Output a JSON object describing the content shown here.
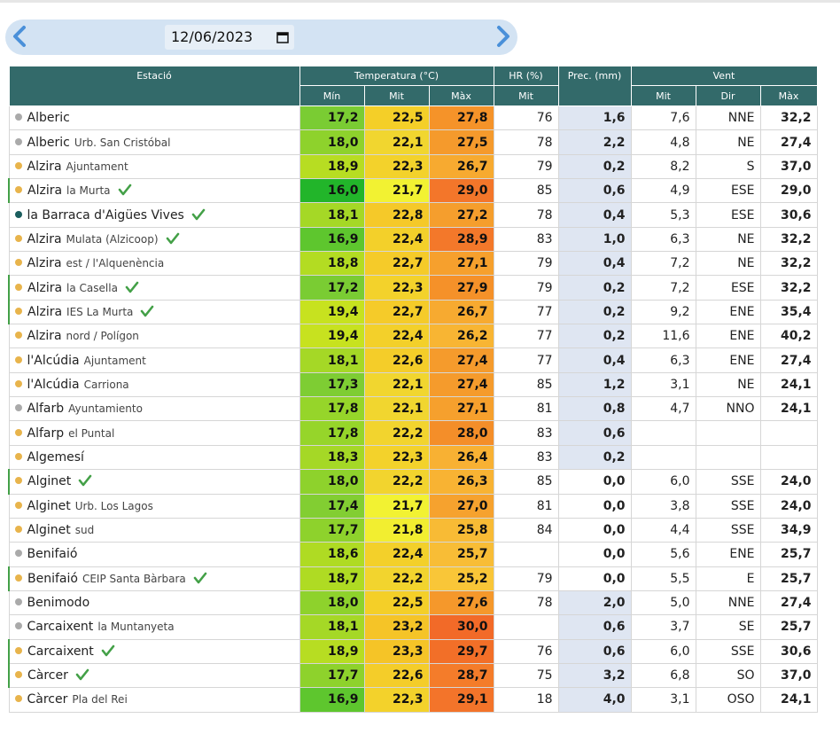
{
  "date_value": "12/06/2023",
  "header": {
    "estacio": "Estació",
    "temperatura": "Temperatura (°C)",
    "hr": "HR (%)",
    "prec": "Prec. (mm)",
    "vent": "Vent",
    "min": "Mín",
    "mit": "Mit",
    "max": "Màx",
    "hr_mit": "Mit",
    "vent_mit": "Mit",
    "vent_dir": "Dir",
    "vent_max": "Màx"
  },
  "colors": {
    "header_bg": "#336a6a",
    "date_bar_bg": "#d3e3f3",
    "arrow": "#4a90d9",
    "check": "#43a047",
    "prec_shaded": "#dfe6f2",
    "dot_grey": "#aaaaaa",
    "dot_yellow": "#e8b44c",
    "dot_teal": "#1b5e5e"
  },
  "rows": [
    {
      "city": "Alberic",
      "sub": "",
      "dot": "grey",
      "check": false,
      "bar": false,
      "min": "17,2",
      "mit": "22,5",
      "max": "27,8",
      "min_c": "#7acc33",
      "mit_c": "#f4cf28",
      "max_c": "#f59329",
      "hr": "76",
      "prec": "1,6",
      "shade": true,
      "vmit": "7,6",
      "vdir": "NNE",
      "vmax": "32,2"
    },
    {
      "city": "Alberic",
      "sub": "Urb. San Cristóbal",
      "dot": "grey",
      "check": false,
      "bar": false,
      "min": "18,0",
      "mit": "22,1",
      "max": "27,5",
      "min_c": "#8ed22c",
      "mit_c": "#f1d62f",
      "max_c": "#f59a2c",
      "hr": "78",
      "prec": "2,2",
      "shade": true,
      "vmit": "4,8",
      "vdir": "NE",
      "vmax": "27,4"
    },
    {
      "city": "Alzira",
      "sub": "Ajuntament",
      "dot": "yellow",
      "check": false,
      "bar": false,
      "min": "18,9",
      "mit": "22,3",
      "max": "26,7",
      "min_c": "#b7dd22",
      "mit_c": "#f3d22b",
      "max_c": "#f7aa30",
      "hr": "79",
      "prec": "0,2",
      "shade": true,
      "vmit": "8,2",
      "vdir": "S",
      "vmax": "37,0"
    },
    {
      "city": "Alzira",
      "sub": "la Murta",
      "dot": "yellow",
      "check": true,
      "bar": true,
      "min": "16,0",
      "mit": "21,7",
      "max": "29,0",
      "min_c": "#22b52a",
      "mit_c": "#f2f232",
      "max_c": "#f3762a",
      "hr": "85",
      "prec": "0,6",
      "shade": true,
      "vmit": "4,9",
      "vdir": "ESE",
      "vmax": "29,0"
    },
    {
      "city": "la Barraca d'Aigües Vives",
      "sub": "",
      "dot": "teal",
      "check": true,
      "bar": false,
      "min": "18,1",
      "mit": "22,8",
      "max": "27,2",
      "min_c": "#a5d826",
      "mit_c": "#f5c929",
      "max_c": "#f59e2d",
      "hr": "78",
      "prec": "0,4",
      "shade": true,
      "vmit": "5,3",
      "vdir": "ESE",
      "vmax": "30,6"
    },
    {
      "city": "Alzira",
      "sub": "Mulata (Alzicoop)",
      "dot": "yellow",
      "check": true,
      "bar": false,
      "min": "16,9",
      "mit": "22,4",
      "max": "28,9",
      "min_c": "#5ec62e",
      "mit_c": "#f3d02a",
      "max_c": "#f3782a",
      "hr": "83",
      "prec": "1,0",
      "shade": true,
      "vmit": "6,3",
      "vdir": "NE",
      "vmax": "32,2"
    },
    {
      "city": "Alzira",
      "sub": "est / l'Alquenència",
      "dot": "yellow",
      "check": false,
      "bar": false,
      "min": "18,8",
      "mit": "22,7",
      "max": "27,1",
      "min_c": "#b3dc22",
      "mit_c": "#f5cb29",
      "max_c": "#f6a02d",
      "hr": "79",
      "prec": "0,4",
      "shade": true,
      "vmit": "7,2",
      "vdir": "NE",
      "vmax": "32,2"
    },
    {
      "city": "Alzira",
      "sub": "la Casella",
      "dot": "yellow",
      "check": true,
      "bar": true,
      "min": "17,2",
      "mit": "22,3",
      "max": "27,9",
      "min_c": "#7acc33",
      "mit_c": "#f3d22b",
      "max_c": "#f59129",
      "hr": "79",
      "prec": "0,2",
      "shade": true,
      "vmit": "7,2",
      "vdir": "ESE",
      "vmax": "32,2"
    },
    {
      "city": "Alzira",
      "sub": "IES La Murta",
      "dot": "yellow",
      "check": true,
      "bar": true,
      "min": "19,4",
      "mit": "22,7",
      "max": "26,7",
      "min_c": "#c7e21f",
      "mit_c": "#f5cb29",
      "max_c": "#f7aa30",
      "hr": "77",
      "prec": "0,2",
      "shade": true,
      "vmit": "9,2",
      "vdir": "ENE",
      "vmax": "35,4"
    },
    {
      "city": "Alzira",
      "sub": "nord / Polígon",
      "dot": "yellow",
      "check": false,
      "bar": false,
      "min": "19,4",
      "mit": "22,4",
      "max": "26,2",
      "min_c": "#c7e21f",
      "mit_c": "#f3d02a",
      "max_c": "#f8b533",
      "hr": "77",
      "prec": "0,2",
      "shade": true,
      "vmit": "11,6",
      "vdir": "ENE",
      "vmax": "40,2"
    },
    {
      "city": "l'Alcúdia",
      "sub": "Ajuntament",
      "dot": "yellow",
      "check": false,
      "bar": false,
      "min": "18,1",
      "mit": "22,6",
      "max": "27,4",
      "min_c": "#a5d826",
      "mit_c": "#f4cd29",
      "max_c": "#f59b2c",
      "hr": "77",
      "prec": "0,4",
      "shade": true,
      "vmit": "6,3",
      "vdir": "ENE",
      "vmax": "27,4"
    },
    {
      "city": "l'Alcúdia",
      "sub": "Carriona",
      "dot": "yellow",
      "check": false,
      "bar": false,
      "min": "17,3",
      "mit": "22,1",
      "max": "27,4",
      "min_c": "#7ecd33",
      "mit_c": "#f1d62f",
      "max_c": "#f59b2c",
      "hr": "85",
      "prec": "1,2",
      "shade": true,
      "vmit": "3,1",
      "vdir": "NE",
      "vmax": "24,1"
    },
    {
      "city": "Alfarb",
      "sub": "Ayuntamiento",
      "dot": "grey",
      "check": false,
      "bar": false,
      "min": "17,8",
      "mit": "22,1",
      "max": "27,1",
      "min_c": "#96d52a",
      "mit_c": "#f1d62f",
      "max_c": "#f6a02d",
      "hr": "81",
      "prec": "0,8",
      "shade": true,
      "vmit": "4,7",
      "vdir": "NNO",
      "vmax": "24,1"
    },
    {
      "city": "Alfarp",
      "sub": "el Puntal",
      "dot": "yellow",
      "check": false,
      "bar": false,
      "min": "17,8",
      "mit": "22,2",
      "max": "28,0",
      "min_c": "#96d52a",
      "mit_c": "#f2d42e",
      "max_c": "#f48e29",
      "hr": "83",
      "prec": "0,6",
      "shade": true,
      "vmit": "",
      "vdir": "",
      "vmax": ""
    },
    {
      "city": "Algemesí",
      "sub": "",
      "dot": "yellow",
      "check": false,
      "bar": false,
      "min": "18,3",
      "mit": "22,3",
      "max": "26,4",
      "min_c": "#a5d826",
      "mit_c": "#f3d22b",
      "max_c": "#f8b133",
      "hr": "83",
      "prec": "0,2",
      "shade": true,
      "vmit": "",
      "vdir": "",
      "vmax": ""
    },
    {
      "city": "Alginet",
      "sub": "",
      "dot": "yellow",
      "check": true,
      "bar": true,
      "min": "18,0",
      "mit": "22,2",
      "max": "26,3",
      "min_c": "#8ed22c",
      "mit_c": "#f2d42e",
      "max_c": "#f8b333",
      "hr": "85",
      "prec": "0,0",
      "shade": false,
      "vmit": "6,0",
      "vdir": "SSE",
      "vmax": "24,0"
    },
    {
      "city": "Alginet",
      "sub": "Urb. Los Lagos",
      "dot": "yellow",
      "check": false,
      "bar": false,
      "min": "17,4",
      "mit": "21,7",
      "max": "27,0",
      "min_c": "#82ce32",
      "mit_c": "#f2f232",
      "max_c": "#f6a22e",
      "hr": "81",
      "prec": "0,0",
      "shade": false,
      "vmit": "3,8",
      "vdir": "SSE",
      "vmax": "24,0"
    },
    {
      "city": "Alginet",
      "sub": "sud",
      "dot": "yellow",
      "check": false,
      "bar": false,
      "min": "17,7",
      "mit": "21,8",
      "max": "25,8",
      "min_c": "#8ed22c",
      "mit_c": "#f2ee30",
      "max_c": "#f8bb35",
      "hr": "84",
      "prec": "0,0",
      "shade": false,
      "vmit": "4,4",
      "vdir": "SSE",
      "vmax": "34,9"
    },
    {
      "city": "Benifaió",
      "sub": "",
      "dot": "grey",
      "check": false,
      "bar": false,
      "min": "18,6",
      "mit": "22,4",
      "max": "25,7",
      "min_c": "#afdb23",
      "mit_c": "#f3d02a",
      "max_c": "#f8bd36",
      "hr": "",
      "prec": "0,0",
      "shade": false,
      "vmit": "5,6",
      "vdir": "ENE",
      "vmax": "25,7"
    },
    {
      "city": "Benifaió",
      "sub": "CEIP Santa Bàrbara",
      "dot": "yellow",
      "check": true,
      "bar": true,
      "min": "18,7",
      "mit": "22,2",
      "max": "25,2",
      "min_c": "#afdb23",
      "mit_c": "#f2d42e",
      "max_c": "#f9c638",
      "hr": "79",
      "prec": "0,0",
      "shade": false,
      "vmit": "5,5",
      "vdir": "E",
      "vmax": "25,7"
    },
    {
      "city": "Benimodo",
      "sub": "",
      "dot": "grey",
      "check": false,
      "bar": false,
      "min": "18,0",
      "mit": "22,5",
      "max": "27,6",
      "min_c": "#8ed22c",
      "mit_c": "#f4cf28",
      "max_c": "#f5982b",
      "hr": "78",
      "prec": "2,0",
      "shade": true,
      "vmit": "5,0",
      "vdir": "NNE",
      "vmax": "27,4"
    },
    {
      "city": "Carcaixent",
      "sub": "la Muntanyeta",
      "dot": "grey",
      "check": false,
      "bar": false,
      "min": "18,1",
      "mit": "23,2",
      "max": "30,0",
      "min_c": "#a5d826",
      "mit_c": "#f5c427",
      "max_c": "#f26a28",
      "hr": "",
      "prec": "0,6",
      "shade": true,
      "vmit": "3,7",
      "vdir": "SE",
      "vmax": "25,7"
    },
    {
      "city": "Carcaixent",
      "sub": "",
      "dot": "yellow",
      "check": true,
      "bar": true,
      "min": "18,9",
      "mit": "23,3",
      "max": "29,7",
      "min_c": "#b7dd22",
      "mit_c": "#f5c427",
      "max_c": "#f26f28",
      "hr": "76",
      "prec": "0,6",
      "shade": true,
      "vmit": "6,0",
      "vdir": "SSE",
      "vmax": "30,6"
    },
    {
      "city": "Càrcer",
      "sub": "",
      "dot": "yellow",
      "check": true,
      "bar": true,
      "min": "17,7",
      "mit": "22,6",
      "max": "28,7",
      "min_c": "#8ed22c",
      "mit_c": "#f4cd29",
      "max_c": "#f47c2a",
      "hr": "75",
      "prec": "3,2",
      "shade": true,
      "vmit": "6,8",
      "vdir": "SO",
      "vmax": "37,0"
    },
    {
      "city": "Càrcer",
      "sub": "Pla del Rei",
      "dot": "yellow",
      "check": false,
      "bar": false,
      "min": "16,9",
      "mit": "22,3",
      "max": "29,1",
      "min_c": "#5ec62e",
      "mit_c": "#f3d22b",
      "max_c": "#f3742a",
      "hr": "18",
      "prec": "4,0",
      "shade": true,
      "vmit": "3,1",
      "vdir": "OSO",
      "vmax": "24,1"
    }
  ]
}
